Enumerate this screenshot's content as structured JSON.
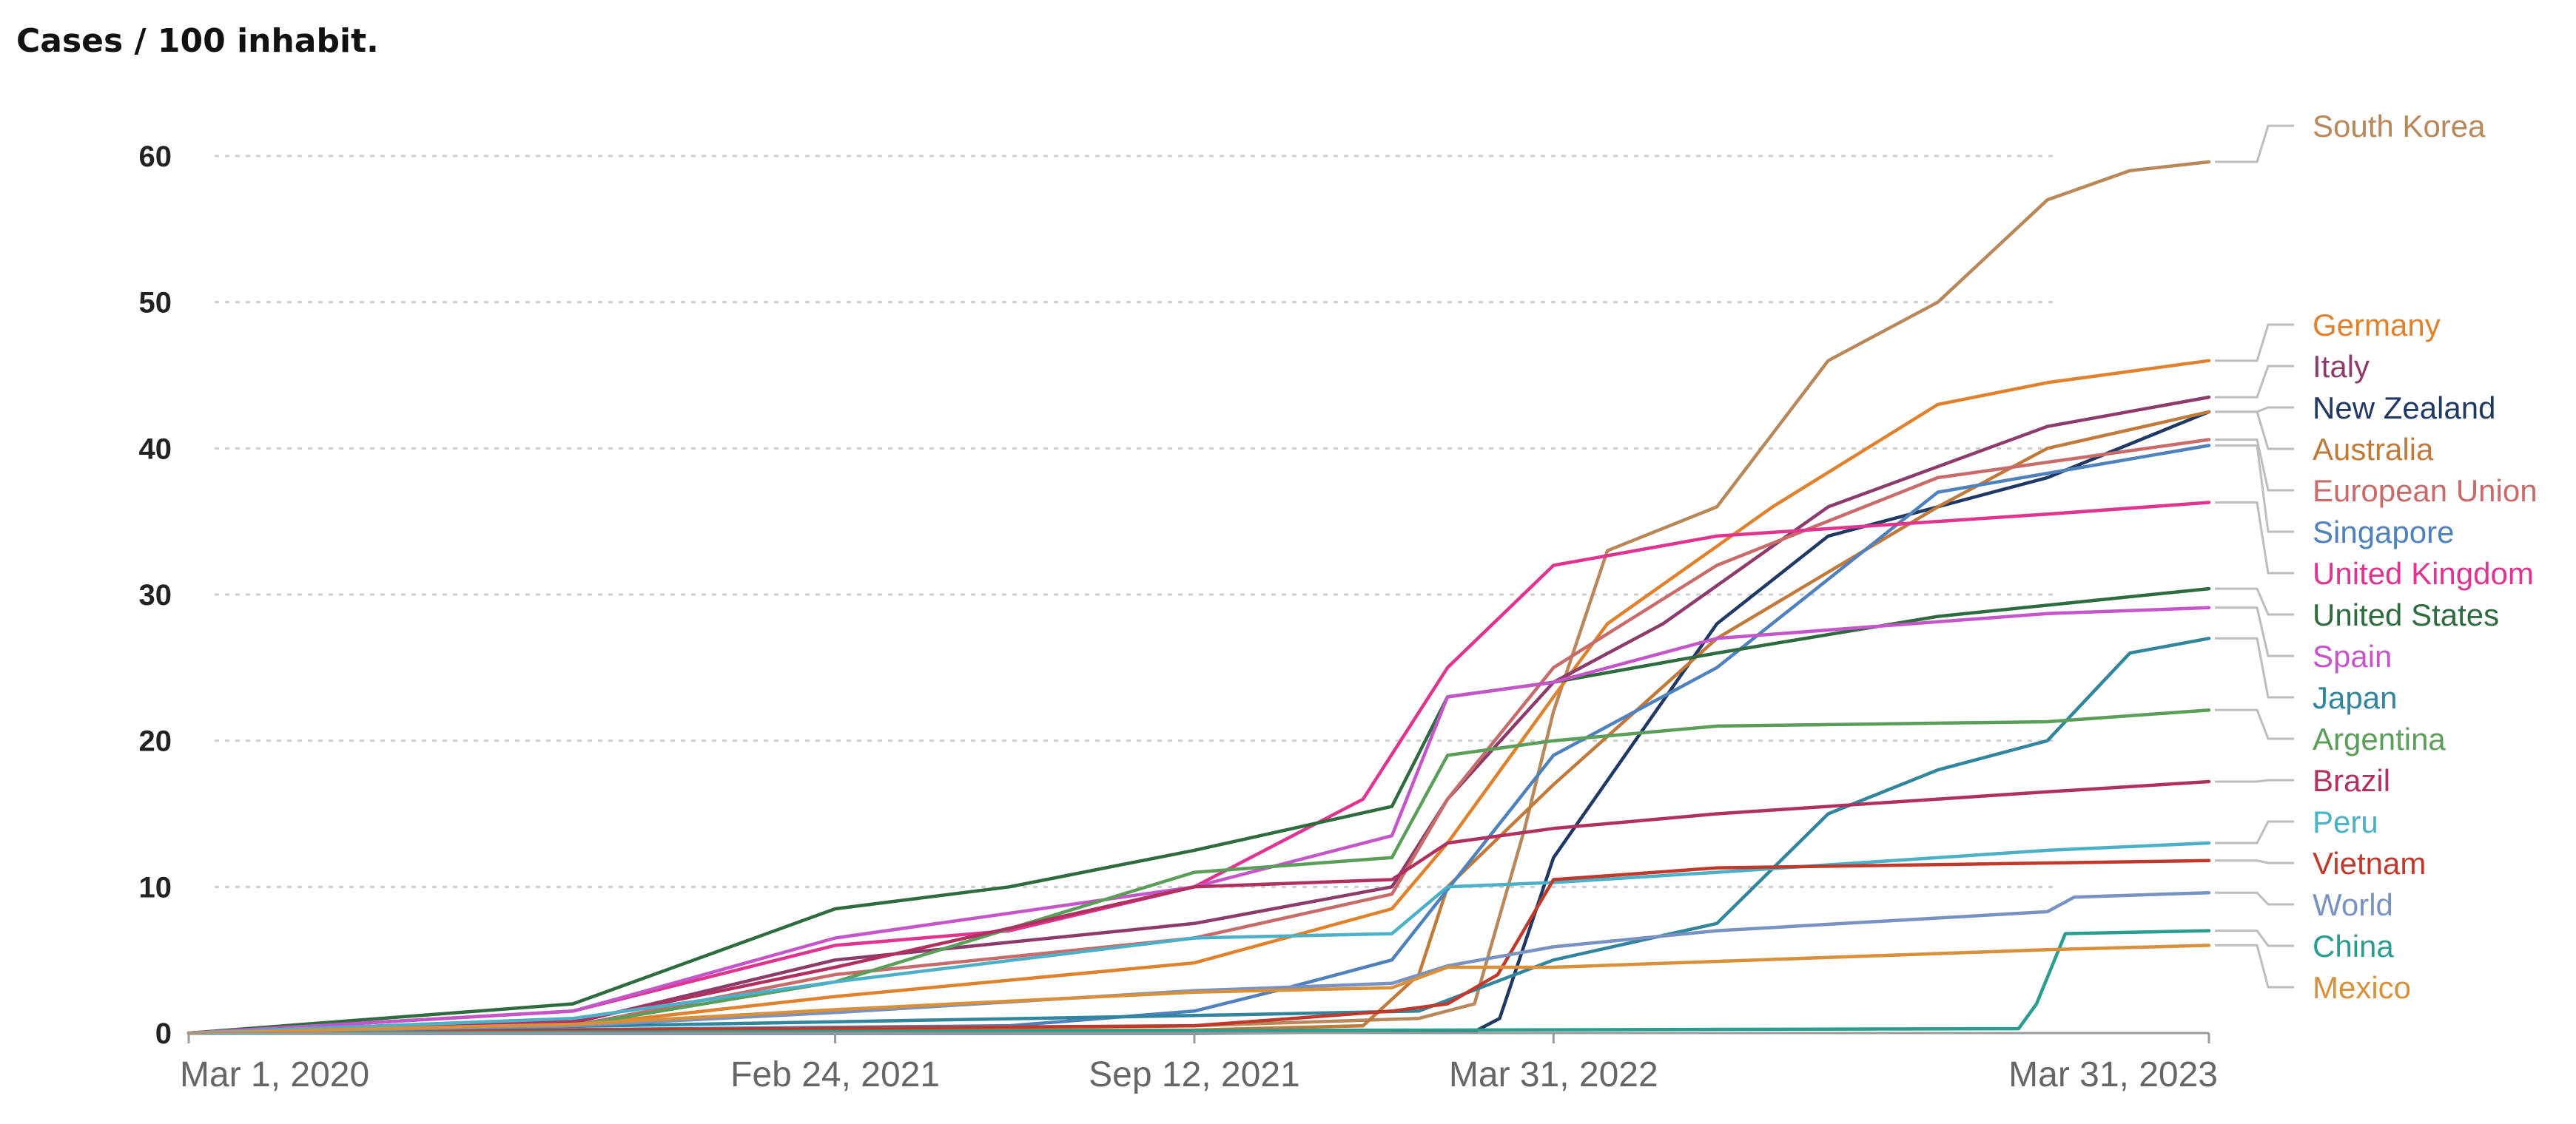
{
  "chart_data": {
    "type": "line",
    "title": "Cases / 100 inhabit.",
    "xlabel": "",
    "ylabel": "",
    "ylim": [
      0,
      60
    ],
    "yticks": [
      0,
      10,
      20,
      30,
      40,
      50,
      60
    ],
    "xlim": [
      "2020-03-01",
      "2023-03-31"
    ],
    "xtick_labels": [
      "Mar 1, 2020",
      "Feb 24, 2021",
      "Sep 12, 2021",
      "Mar 31, 2022",
      "Mar 31, 2023"
    ],
    "xtick_dates": [
      "2020-03-01",
      "2021-02-24",
      "2021-09-12",
      "2022-03-31",
      "2023-03-31"
    ],
    "grid": "horizontal dotted",
    "legend": "right",
    "series": [
      {
        "name": "South Korea",
        "color": "#b8875a",
        "x": [
          "2020-03-01",
          "2021-02-24",
          "2021-09-12",
          "2022-01-15",
          "2022-02-15",
          "2022-03-15",
          "2022-03-31",
          "2022-04-30",
          "2022-06-30",
          "2022-08-31",
          "2022-10-31",
          "2022-12-31",
          "2023-02-15",
          "2023-03-31"
        ],
        "y": [
          0,
          0.2,
          0.5,
          1,
          2,
          14,
          22,
          33,
          36,
          46,
          50,
          57,
          59,
          59.6
        ]
      },
      {
        "name": "Germany",
        "color": "#e0822d",
        "x": [
          "2020-03-01",
          "2020-10-01",
          "2021-02-24",
          "2021-09-12",
          "2021-12-31",
          "2022-01-31",
          "2022-03-31",
          "2022-04-30",
          "2022-07-31",
          "2022-10-31",
          "2022-12-31",
          "2023-03-31"
        ],
        "y": [
          0,
          0.5,
          2.5,
          4.8,
          8.5,
          13,
          23,
          28,
          36,
          43,
          44.5,
          46
        ]
      },
      {
        "name": "Italy",
        "color": "#8c3b6b",
        "x": [
          "2020-03-01",
          "2020-10-01",
          "2021-02-24",
          "2021-09-12",
          "2021-12-31",
          "2022-01-31",
          "2022-03-31",
          "2022-05-31",
          "2022-08-31",
          "2022-12-31",
          "2023-03-31"
        ],
        "y": [
          0,
          0.7,
          5,
          7.5,
          10,
          16,
          24,
          28,
          36,
          41.5,
          43.5
        ]
      },
      {
        "name": "New Zealand",
        "color": "#1f3864",
        "x": [
          "2020-03-01",
          "2021-09-12",
          "2022-02-15",
          "2022-03-01",
          "2022-03-31",
          "2022-06-30",
          "2022-08-31",
          "2022-12-31",
          "2023-03-31"
        ],
        "y": [
          0,
          0,
          0.1,
          1,
          12,
          28,
          34,
          38,
          42.5
        ]
      },
      {
        "name": "Australia",
        "color": "#c07a3a",
        "x": [
          "2020-03-01",
          "2021-09-12",
          "2021-12-15",
          "2022-01-15",
          "2022-01-31",
          "2022-03-31",
          "2022-06-30",
          "2022-10-31",
          "2022-12-31",
          "2023-03-31"
        ],
        "y": [
          0,
          0.2,
          0.5,
          4,
          10,
          17,
          27,
          36,
          40,
          42.5
        ]
      },
      {
        "name": "European Union",
        "color": "#c76b6b",
        "x": [
          "2020-03-01",
          "2020-10-01",
          "2021-02-24",
          "2021-09-12",
          "2021-12-31",
          "2022-01-31",
          "2022-03-31",
          "2022-06-30",
          "2022-10-31",
          "2023-03-31"
        ],
        "y": [
          0,
          0.5,
          4,
          6.5,
          9.5,
          16,
          25,
          32,
          38,
          40.6
        ]
      },
      {
        "name": "Singapore",
        "color": "#4f81bd",
        "x": [
          "2020-03-01",
          "2021-06-01",
          "2021-09-12",
          "2021-10-31",
          "2021-12-31",
          "2022-03-31",
          "2022-06-30",
          "2022-10-31",
          "2023-03-31"
        ],
        "y": [
          0,
          0.5,
          1.5,
          3,
          5,
          19,
          25,
          37,
          40.2
        ]
      },
      {
        "name": "United Kingdom",
        "color": "#e0348f",
        "x": [
          "2020-03-01",
          "2020-10-01",
          "2021-02-24",
          "2021-06-01",
          "2021-09-12",
          "2021-12-15",
          "2022-01-31",
          "2022-03-31",
          "2022-06-30",
          "2022-12-31",
          "2023-03-31"
        ],
        "y": [
          0,
          1.5,
          6,
          7,
          10,
          16,
          25,
          32,
          34,
          35.5,
          36.3
        ]
      },
      {
        "name": "United States",
        "color": "#2e6b3e",
        "x": [
          "2020-03-01",
          "2020-10-01",
          "2021-02-24",
          "2021-06-01",
          "2021-09-12",
          "2021-12-31",
          "2022-01-31",
          "2022-03-31",
          "2022-06-30",
          "2022-10-31",
          "2023-03-31"
        ],
        "y": [
          0,
          2,
          8.5,
          10,
          12.5,
          15.5,
          23,
          24,
          26,
          28.5,
          30.4
        ]
      },
      {
        "name": "Spain",
        "color": "#c456c9",
        "x": [
          "2020-03-01",
          "2020-10-01",
          "2021-02-24",
          "2021-09-12",
          "2021-12-31",
          "2022-01-31",
          "2022-03-31",
          "2022-06-30",
          "2022-12-31",
          "2023-03-31"
        ],
        "y": [
          0,
          1.5,
          6.5,
          10,
          13.5,
          23,
          24,
          27,
          28.7,
          29.1
        ]
      },
      {
        "name": "Japan",
        "color": "#31859c",
        "x": [
          "2020-03-01",
          "2021-09-12",
          "2022-01-15",
          "2022-03-31",
          "2022-06-30",
          "2022-08-31",
          "2022-10-31",
          "2022-12-31",
          "2023-02-15",
          "2023-03-31"
        ],
        "y": [
          0,
          1.2,
          1.5,
          5,
          7.5,
          15,
          18,
          20,
          26,
          27
        ]
      },
      {
        "name": "Argentina",
        "color": "#5a9e5a",
        "x": [
          "2020-03-01",
          "2020-10-01",
          "2021-02-24",
          "2021-09-12",
          "2021-12-31",
          "2022-01-31",
          "2022-03-31",
          "2022-06-30",
          "2022-12-31",
          "2023-03-31"
        ],
        "y": [
          0,
          0.5,
          3.5,
          11,
          12,
          19,
          20,
          21,
          21.3,
          22.1
        ]
      },
      {
        "name": "Brazil",
        "color": "#b03060",
        "x": [
          "2020-03-01",
          "2020-10-01",
          "2021-02-24",
          "2021-09-12",
          "2021-12-31",
          "2022-01-31",
          "2022-03-31",
          "2022-06-30",
          "2022-12-31",
          "2023-03-31"
        ],
        "y": [
          0,
          0.8,
          4.5,
          10,
          10.5,
          13,
          14,
          15,
          16.5,
          17.2
        ]
      },
      {
        "name": "Peru",
        "color": "#4cb0c7",
        "x": [
          "2020-03-01",
          "2020-10-01",
          "2021-02-24",
          "2021-09-12",
          "2021-12-31",
          "2022-01-31",
          "2022-03-31",
          "2022-06-30",
          "2022-12-31",
          "2023-03-31"
        ],
        "y": [
          0,
          1,
          3.5,
          6.5,
          6.8,
          10,
          10.3,
          11,
          12.5,
          13
        ]
      },
      {
        "name": "Vietnam",
        "color": "#c0392b",
        "x": [
          "2020-03-01",
          "2021-09-12",
          "2021-12-31",
          "2022-01-31",
          "2022-02-28",
          "2022-03-31",
          "2022-06-30",
          "2023-03-31"
        ],
        "y": [
          0,
          0.5,
          1.5,
          2,
          4,
          10.5,
          11.3,
          11.8
        ]
      },
      {
        "name": "World",
        "color": "#7892c2",
        "x": [
          "2020-03-01",
          "2020-10-01",
          "2021-02-24",
          "2021-09-12",
          "2021-12-31",
          "2022-01-31",
          "2022-03-31",
          "2022-06-30",
          "2022-12-31",
          "2023-01-15",
          "2023-03-31"
        ],
        "y": [
          0,
          0.5,
          1.4,
          2.9,
          3.4,
          4.6,
          5.9,
          7,
          8.3,
          9.3,
          9.6
        ]
      },
      {
        "name": "China",
        "color": "#2a9d8f",
        "x": [
          "2020-03-01",
          "2022-12-15",
          "2022-12-25",
          "2023-01-10",
          "2023-03-31"
        ],
        "y": [
          0,
          0.3,
          2,
          6.8,
          7
        ]
      },
      {
        "name": "Mexico",
        "color": "#d9903a",
        "x": [
          "2020-03-01",
          "2020-10-01",
          "2021-02-24",
          "2021-09-12",
          "2021-12-31",
          "2022-01-31",
          "2022-03-31",
          "2022-06-30",
          "2022-12-31",
          "2023-03-31"
        ],
        "y": [
          0,
          0.6,
          1.6,
          2.8,
          3.1,
          4.5,
          4.5,
          4.9,
          5.7,
          6
        ]
      }
    ]
  }
}
